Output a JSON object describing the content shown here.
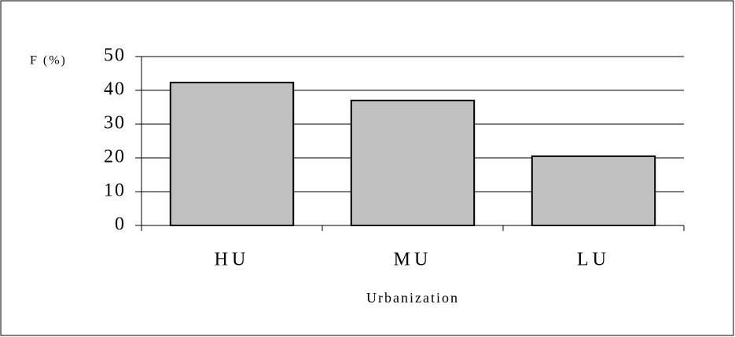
{
  "chart_data": {
    "type": "bar",
    "y_label": "F (%)",
    "x_label": "Urbanization",
    "categories": [
      "HU",
      "MU",
      "LU"
    ],
    "values": [
      42.3,
      37,
      20.5
    ],
    "color": "#c0c0c0",
    "ylim": [
      0,
      50
    ],
    "yticks": [
      0,
      10,
      20,
      30,
      40,
      50
    ],
    "grid": true
  }
}
